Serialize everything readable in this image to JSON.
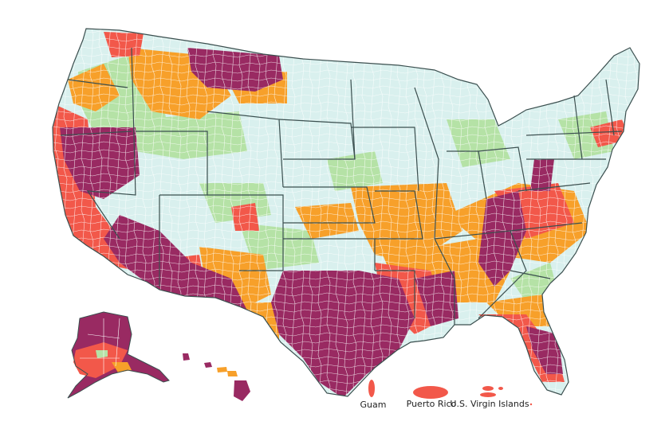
{
  "map": {
    "palette": {
      "very_light": "#d9f0ee",
      "light": "#b5e2a6",
      "moderate": "#f7a02a",
      "high": "#f2584a",
      "very_high": "#992a62",
      "county_border": "#ffffff",
      "state_border": "#3b4f4f"
    },
    "territory_labels": {
      "guam": "Guam",
      "puerto_rico": "Puerto Rico",
      "usvi": "U.S. Virgin Islands"
    }
  }
}
